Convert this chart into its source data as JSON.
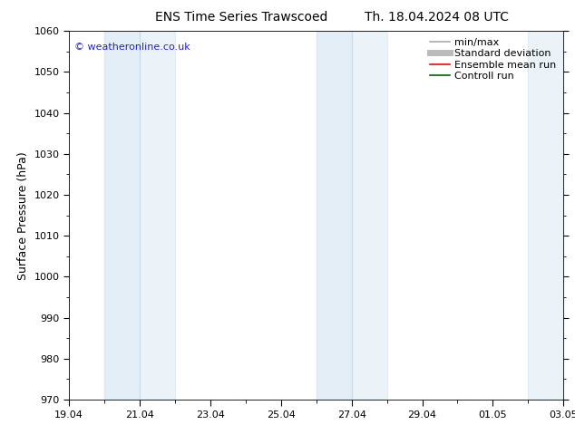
{
  "title_left": "ENS Time Series Trawscoed",
  "title_right": "Th. 18.04.2024 08 UTC",
  "ylabel": "Surface Pressure (hPa)",
  "ylim": [
    970,
    1060
  ],
  "yticks": [
    970,
    980,
    990,
    1000,
    1010,
    1020,
    1030,
    1040,
    1050,
    1060
  ],
  "xtick_labels": [
    "19.04",
    "21.04",
    "23.04",
    "25.04",
    "27.04",
    "29.04",
    "01.05",
    "03.05"
  ],
  "xtick_positions": [
    0,
    2,
    4,
    6,
    8,
    10,
    12,
    14
  ],
  "total_days": 14,
  "shaded_regions": [
    {
      "start": 1.0,
      "end": 2.0,
      "alpha": 0.35
    },
    {
      "start": 2.0,
      "end": 3.0,
      "alpha": 0.25
    },
    {
      "start": 7.0,
      "end": 8.0,
      "alpha": 0.35
    },
    {
      "start": 8.0,
      "end": 9.0,
      "alpha": 0.25
    },
    {
      "start": 13.0,
      "end": 14.0,
      "alpha": 0.25
    }
  ],
  "copyright_text": "© weatheronline.co.uk",
  "copyright_color": "#2222cc",
  "background_color": "#ffffff",
  "plot_bg_color": "#ffffff",
  "shade_color": "#b0d0e8",
  "legend_items": [
    {
      "label": "min/max",
      "color": "#aaaaaa",
      "lw": 1.2
    },
    {
      "label": "Standard deviation",
      "color": "#bbbbbb",
      "lw": 5
    },
    {
      "label": "Ensemble mean run",
      "color": "#ff0000",
      "lw": 1.2
    },
    {
      "label": "Controll run",
      "color": "#006600",
      "lw": 1.2
    }
  ],
  "title_fontsize": 10,
  "ylabel_fontsize": 9,
  "tick_fontsize": 8,
  "legend_fontsize": 8,
  "copyright_fontsize": 8
}
